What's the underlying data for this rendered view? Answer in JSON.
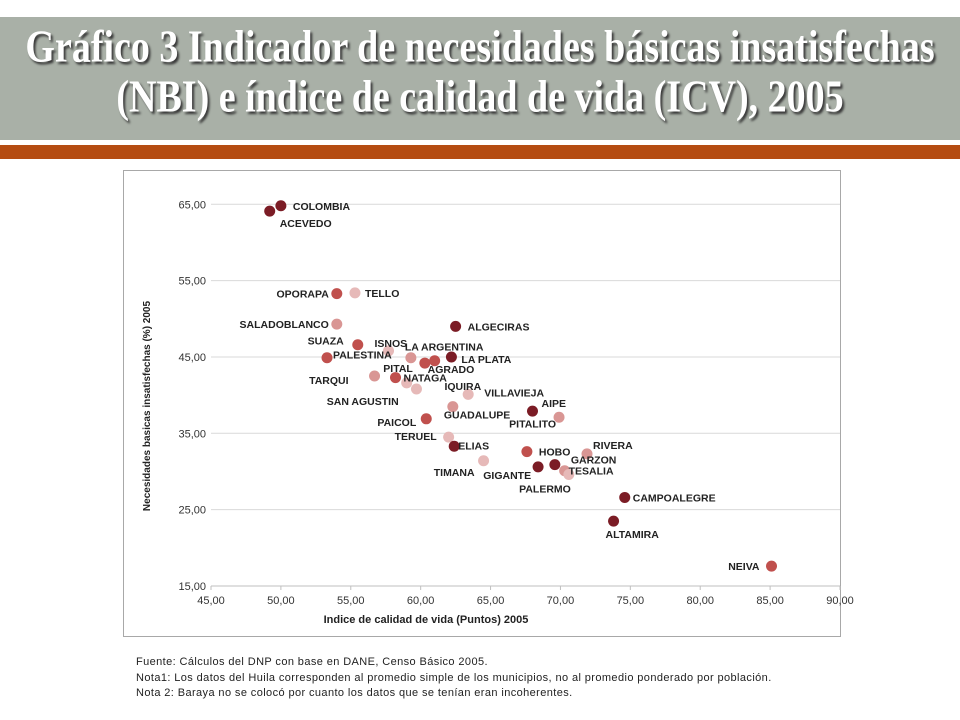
{
  "header": {
    "title_line1": "Gráfico 3 Indicador de necesidades básicas insatisfechas",
    "title_line2": "(NBI) e índice de calidad de vida (ICV), 2005"
  },
  "colors": {
    "band": "#a9b0a7",
    "accent": "#b54c12",
    "dark": "#7b1c25",
    "medium": "#c0504d",
    "light": "#d99694",
    "pale": "#e6b9b8"
  },
  "chart_data": {
    "type": "scatter",
    "title": "",
    "xlabel": "Indice de calidad de vida (Puntos) 2005",
    "ylabel": "Necesidades basicas insatisfechas (%) 2005",
    "xlim": [
      45,
      90
    ],
    "ylim": [
      15,
      67
    ],
    "xticks": [
      "45,00",
      "50,00",
      "55,00",
      "60,00",
      "65,00",
      "70,00",
      "75,00",
      "80,00",
      "85,00",
      "90,00"
    ],
    "xtick_values": [
      45,
      50,
      55,
      60,
      65,
      70,
      75,
      80,
      85,
      90
    ],
    "yticks": [
      "15,00",
      "25,00",
      "35,00",
      "45,00",
      "55,00",
      "65,00"
    ],
    "ytick_values": [
      15,
      25,
      35,
      45,
      55,
      65
    ],
    "points": [
      {
        "name": "COLOMBIA",
        "x": 50.0,
        "y": 64.8,
        "shade": "dark"
      },
      {
        "name": "ACEVEDO",
        "x": 49.2,
        "y": 64.1,
        "shade": "dark"
      },
      {
        "name": "OPORAPA",
        "x": 54.0,
        "y": 53.3,
        "shade": "medium"
      },
      {
        "name": "TELLO",
        "x": 55.3,
        "y": 53.4,
        "shade": "pale"
      },
      {
        "name": "SALADOBLANCO",
        "x": 54.0,
        "y": 49.3,
        "shade": "light"
      },
      {
        "name": "ALGECIRAS",
        "x": 62.5,
        "y": 49.0,
        "shade": "dark"
      },
      {
        "name": "SUAZA",
        "x": 55.5,
        "y": 46.6,
        "shade": "medium"
      },
      {
        "name": "ISNOS",
        "x": 57.7,
        "y": 45.8,
        "shade": "pale"
      },
      {
        "name": "LA ARGENTINA",
        "x": 59.3,
        "y": 44.9,
        "shade": "light"
      },
      {
        "name": "PALESTINA",
        "x": 53.3,
        "y": 44.9,
        "shade": "medium"
      },
      {
        "name": "LA PLATA",
        "x": 62.2,
        "y": 45.0,
        "shade": "dark"
      },
      {
        "name": "PITAL",
        "x": 60.3,
        "y": 44.2,
        "shade": "medium"
      },
      {
        "name": "AGRADO",
        "x": 61.0,
        "y": 44.5,
        "shade": "medium"
      },
      {
        "name": "TARQUI",
        "x": 56.7,
        "y": 42.5,
        "shade": "light"
      },
      {
        "name": "NATAGA",
        "x": 58.2,
        "y": 42.3,
        "shade": "medium"
      },
      {
        "name": "IQUIRA",
        "x": 59.7,
        "y": 40.8,
        "shade": "pale"
      },
      {
        "name": "SAN AGUSTIN",
        "x": 59.0,
        "y": 41.6,
        "shade": "pale"
      },
      {
        "name": "VILLAVIEJA",
        "x": 63.4,
        "y": 40.1,
        "shade": "pale"
      },
      {
        "name": "AIPE",
        "x": 68.0,
        "y": 37.9,
        "shade": "dark"
      },
      {
        "name": "GUADALUPE",
        "x": 62.3,
        "y": 38.5,
        "shade": "light"
      },
      {
        "name": "PITALITO",
        "x": 69.9,
        "y": 37.1,
        "shade": "light"
      },
      {
        "name": "PAICOL",
        "x": 60.4,
        "y": 36.9,
        "shade": "medium"
      },
      {
        "name": "TERUEL",
        "x": 62.0,
        "y": 34.5,
        "shade": "pale"
      },
      {
        "name": "ELIAS",
        "x": 62.4,
        "y": 33.3,
        "shade": "dark"
      },
      {
        "name": "HOBO",
        "x": 67.6,
        "y": 32.6,
        "shade": "medium"
      },
      {
        "name": "RIVERA",
        "x": 71.9,
        "y": 32.3,
        "shade": "light"
      },
      {
        "name": "TIMANA",
        "x": 64.5,
        "y": 31.4,
        "shade": "pale"
      },
      {
        "name": "GARZON",
        "x": 69.6,
        "y": 30.9,
        "shade": "dark"
      },
      {
        "name": "GIGANTE",
        "x": 68.4,
        "y": 30.6,
        "shade": "dark"
      },
      {
        "name": "TESALIA",
        "x": 70.3,
        "y": 30.1,
        "shade": "light"
      },
      {
        "name": "PALERMO",
        "x": 70.6,
        "y": 29.6,
        "shade": "pale"
      },
      {
        "name": "CAMPOALEGRE",
        "x": 74.6,
        "y": 26.6,
        "shade": "dark"
      },
      {
        "name": "ALTAMIRA",
        "x": 73.8,
        "y": 23.5,
        "shade": "dark"
      },
      {
        "name": "NEIVA",
        "x": 85.1,
        "y": 17.6,
        "shade": "medium"
      }
    ]
  },
  "notes": {
    "source": "Fuente: Cálculos del DNP con base en DANE, Censo Básico 2005.",
    "note1": "Nota1: Los datos del Huila corresponden al promedio simple de los municipios, no al promedio ponderado por población.",
    "note2": "Nota 2: Baraya no se colocó por cuanto los datos que se tenían eran incoherentes."
  }
}
